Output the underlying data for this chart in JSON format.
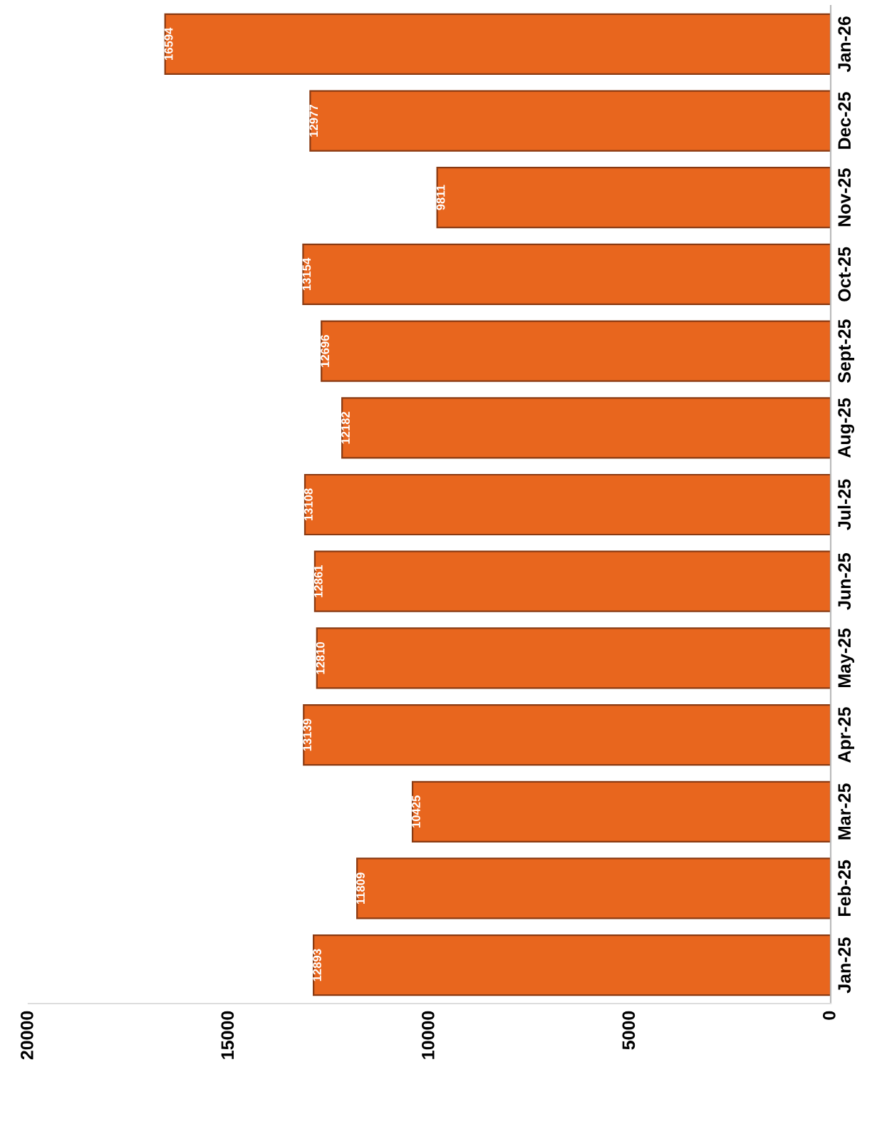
{
  "chart_data": {
    "type": "bar",
    "orientation": "horizontal",
    "categories": [
      "Jan-26",
      "Dec-25",
      "Nov-25",
      "Oct-25",
      "Sept-25",
      "Aug-25",
      "Jul-25",
      "Jun-25",
      "May-25",
      "Apr-25",
      "Mar-25",
      "Feb-25",
      "Jan-25"
    ],
    "values": [
      16594,
      12977,
      9811,
      13154,
      12696,
      12182,
      13108,
      12861,
      12810,
      13139,
      10425,
      11809,
      12893
    ],
    "color": "#e8661e",
    "xlim": [
      20000,
      0
    ],
    "xticks": [
      20000,
      15000,
      10000,
      5000,
      0
    ],
    "data_labels": true,
    "grid": false,
    "legend": false
  }
}
